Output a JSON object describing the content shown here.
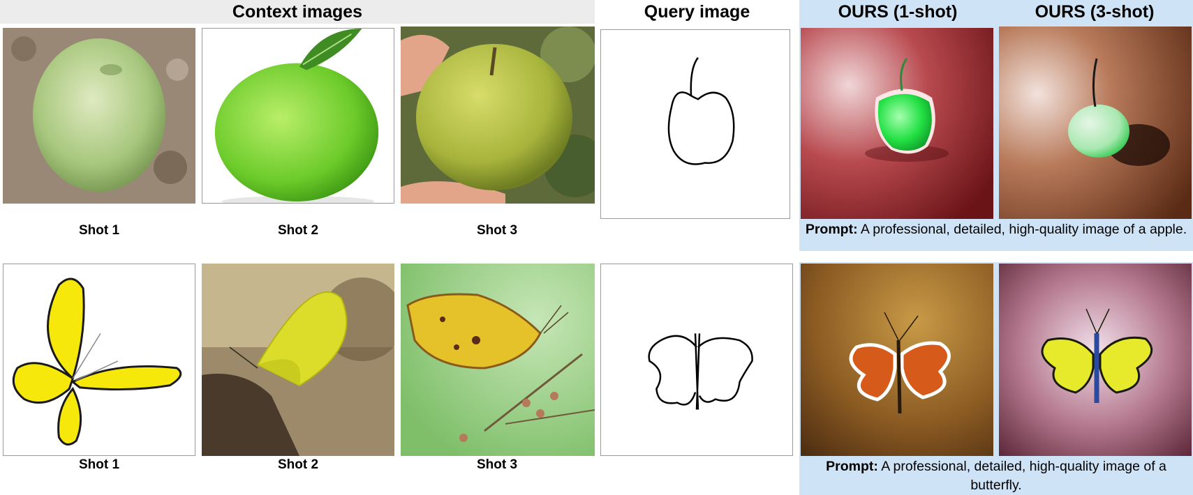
{
  "headers": {
    "context": "Context images",
    "query": "Query image",
    "ours_1shot": "OURS (1-shot)",
    "ours_3shot": "OURS (3-shot)"
  },
  "rows": [
    {
      "subject": "apple",
      "shot_labels": [
        "Shot 1",
        "Shot 2",
        "Shot 3"
      ],
      "prompt_label": "Prompt:",
      "prompt_text": "A professional, detailed, high-quality image of a apple."
    },
    {
      "subject": "butterfly",
      "shot_labels": [
        "Shot 1",
        "Shot 2",
        "Shot 3"
      ],
      "prompt_label": "Prompt:",
      "prompt_text": "A professional, detailed, high-quality image of a butterfly."
    }
  ],
  "colors": {
    "context_header_bg": "#ececec",
    "ours_bg": "#cfe3f6"
  }
}
